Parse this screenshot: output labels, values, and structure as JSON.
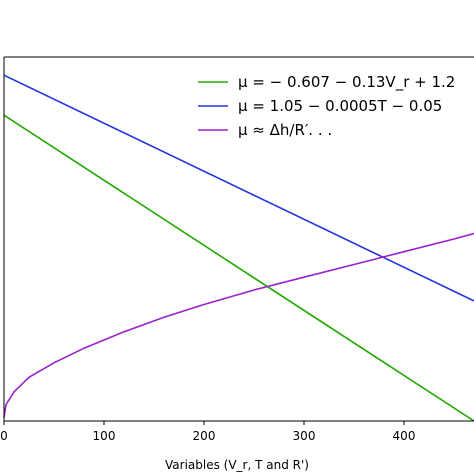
{
  "chart_data": {
    "type": "line",
    "xlabel": "Variables (V_r, T and R')",
    "xlim": [
      0,
      470
    ],
    "ylim": [
      0,
      1
    ],
    "x_ticks": [
      0,
      100,
      200,
      300,
      400
    ],
    "x_tick_labels": [
      "0",
      "100",
      "200",
      "300",
      "400"
    ],
    "grid": false,
    "legend_position": "top-right",
    "series": [
      {
        "name": "μ = − 0.607 − 0.13V_r + 1.2",
        "color": "#22aa00",
        "x": [
          0,
          470
        ],
        "y": [
          0.84,
          0.0
        ]
      },
      {
        "name": "μ = 1.05 − 0.0005T − 0.05",
        "color": "#2233dd",
        "x": [
          0,
          470
        ],
        "y": [
          0.95,
          0.33
        ]
      },
      {
        "name": "μ ≈ Δh/R′. . .",
        "color": "#9922cc",
        "x": [
          0,
          2,
          10,
          25,
          50,
          80,
          120,
          160,
          200,
          250,
          300,
          350,
          400,
          450,
          470
        ],
        "y": [
          0.01,
          0.045,
          0.08,
          0.12,
          0.16,
          0.2,
          0.245,
          0.285,
          0.32,
          0.36,
          0.395,
          0.43,
          0.465,
          0.5,
          0.515
        ]
      }
    ]
  }
}
